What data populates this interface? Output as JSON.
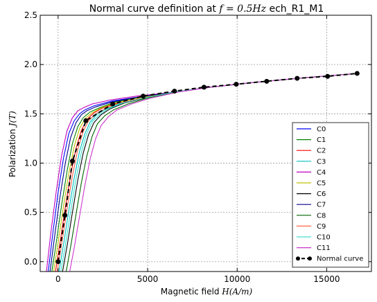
{
  "chart_data": {
    "type": "line",
    "title_prefix": "Normal curve definition at ",
    "title_math": "f = 0.5Hz",
    "title_suffix": " ech_R1_M1",
    "xlabel_text": "Magnetic field ",
    "xlabel_math": "H(A/m)",
    "ylabel_text": "Polarization ",
    "ylabel_math": "J(T)",
    "xlim": [
      -1000,
      17500
    ],
    "ylim": [
      -0.1,
      2.5
    ],
    "x_ticks": [
      0,
      5000,
      10000,
      15000
    ],
    "x_tick_labels": [
      "0",
      "5000",
      "10000",
      "15000"
    ],
    "y_ticks": [
      0.0,
      0.5,
      1.0,
      1.5,
      2.0,
      2.5
    ],
    "y_tick_labels": [
      "0.0",
      "0.5",
      "1.0",
      "1.5",
      "2.0",
      "2.5"
    ],
    "grid": true,
    "legend_position": "lower-right",
    "series": [
      {
        "name": "C0",
        "color": "#0000ff",
        "x": [
          -550,
          -300,
          0,
          300,
          600,
          900,
          1200,
          1500,
          2000,
          3000,
          4500,
          6500,
          8500,
          11000,
          14000,
          16700
        ],
        "y": [
          -0.1,
          0.28,
          0.7,
          1.05,
          1.3,
          1.43,
          1.5,
          1.54,
          1.58,
          1.63,
          1.67,
          1.72,
          1.77,
          1.82,
          1.87,
          1.91
        ]
      },
      {
        "name": "C1",
        "color": "#008000",
        "x": [
          -350,
          -100,
          200,
          500,
          800,
          1100,
          1400,
          1800,
          2300,
          3200,
          4600,
          6500,
          8500,
          11000,
          14000,
          16700
        ],
        "y": [
          -0.1,
          0.2,
          0.58,
          0.92,
          1.2,
          1.37,
          1.46,
          1.52,
          1.56,
          1.62,
          1.67,
          1.72,
          1.77,
          1.82,
          1.87,
          1.91
        ]
      },
      {
        "name": "C2",
        "color": "#ff0000",
        "x": [
          -150,
          100,
          400,
          700,
          1000,
          1300,
          1600,
          2000,
          2500,
          3300,
          4700,
          6500,
          8500,
          11000,
          14000,
          16700
        ],
        "y": [
          -0.1,
          0.18,
          0.55,
          0.88,
          1.15,
          1.33,
          1.44,
          1.51,
          1.56,
          1.61,
          1.66,
          1.72,
          1.77,
          1.82,
          1.87,
          1.91
        ]
      },
      {
        "name": "C3",
        "color": "#00bfbf",
        "x": [
          50,
          300,
          600,
          900,
          1200,
          1500,
          1800,
          2200,
          2700,
          3500,
          4800,
          6500,
          8500,
          11000,
          14000,
          16700
        ],
        "y": [
          -0.1,
          0.17,
          0.52,
          0.85,
          1.12,
          1.3,
          1.42,
          1.5,
          1.55,
          1.61,
          1.66,
          1.72,
          1.77,
          1.82,
          1.87,
          1.91
        ]
      },
      {
        "name": "C4",
        "color": "#bf00bf",
        "x": [
          -650,
          -400,
          -100,
          200,
          500,
          800,
          1100,
          1400,
          1900,
          2900,
          4400,
          6500,
          8500,
          11000,
          14000,
          16700
        ],
        "y": [
          -0.1,
          0.3,
          0.72,
          1.08,
          1.33,
          1.46,
          1.53,
          1.56,
          1.6,
          1.64,
          1.68,
          1.72,
          1.77,
          1.82,
          1.87,
          1.91
        ]
      },
      {
        "name": "C5",
        "color": "#bfbf00",
        "x": [
          -250,
          0,
          300,
          600,
          900,
          1200,
          1500,
          1900,
          2400,
          3200,
          4600,
          6500,
          8500,
          11000,
          14000,
          16700
        ],
        "y": [
          -0.1,
          0.19,
          0.56,
          0.9,
          1.17,
          1.35,
          1.45,
          1.51,
          1.56,
          1.61,
          1.66,
          1.72,
          1.77,
          1.82,
          1.87,
          1.91
        ]
      },
      {
        "name": "C6",
        "color": "#000000",
        "x": [
          250,
          500,
          800,
          1100,
          1400,
          1700,
          2000,
          2400,
          2900,
          3700,
          4900,
          6500,
          8500,
          11000,
          14000,
          16700
        ],
        "y": [
          -0.1,
          0.16,
          0.5,
          0.83,
          1.1,
          1.29,
          1.41,
          1.49,
          1.55,
          1.61,
          1.66,
          1.72,
          1.77,
          1.82,
          1.87,
          1.91
        ]
      },
      {
        "name": "C7",
        "color": "#00008b",
        "x": [
          -450,
          -200,
          100,
          400,
          700,
          1000,
          1300,
          1600,
          2100,
          3000,
          4500,
          6500,
          8500,
          11000,
          14000,
          16700
        ],
        "y": [
          -0.1,
          0.25,
          0.65,
          1.0,
          1.26,
          1.41,
          1.49,
          1.53,
          1.57,
          1.62,
          1.67,
          1.72,
          1.77,
          1.82,
          1.87,
          1.91
        ]
      },
      {
        "name": "C8",
        "color": "#006400",
        "x": [
          450,
          700,
          1000,
          1300,
          1600,
          1900,
          2200,
          2600,
          3100,
          3900,
          5000,
          6600,
          8500,
          11000,
          14000,
          16700
        ],
        "y": [
          -0.1,
          0.15,
          0.48,
          0.8,
          1.07,
          1.27,
          1.4,
          1.48,
          1.54,
          1.6,
          1.66,
          1.72,
          1.77,
          1.82,
          1.87,
          1.91
        ]
      },
      {
        "name": "C9",
        "color": "#ff6347",
        "x": [
          -50,
          200,
          500,
          800,
          1100,
          1400,
          1700,
          2100,
          2600,
          3400,
          4700,
          6500,
          8500,
          11000,
          14000,
          16700
        ],
        "y": [
          -0.1,
          0.18,
          0.54,
          0.87,
          1.14,
          1.32,
          1.43,
          1.5,
          1.55,
          1.61,
          1.66,
          1.72,
          1.77,
          1.82,
          1.87,
          1.91
        ]
      },
      {
        "name": "C10",
        "color": "#40e0d0",
        "x": [
          150,
          400,
          700,
          1000,
          1300,
          1600,
          1900,
          2300,
          2800,
          3600,
          4800,
          6500,
          8500,
          11000,
          14000,
          16700
        ],
        "y": [
          -0.1,
          0.16,
          0.51,
          0.84,
          1.11,
          1.3,
          1.42,
          1.49,
          1.55,
          1.61,
          1.66,
          1.72,
          1.77,
          1.82,
          1.87,
          1.91
        ]
      },
      {
        "name": "C11",
        "color": "#cc33cc",
        "x": [
          650,
          900,
          1200,
          1500,
          1800,
          2100,
          2400,
          2800,
          3300,
          4100,
          5200,
          6700,
          8500,
          11000,
          14000,
          16700
        ],
        "y": [
          -0.1,
          0.14,
          0.46,
          0.78,
          1.05,
          1.25,
          1.38,
          1.47,
          1.54,
          1.6,
          1.66,
          1.72,
          1.77,
          1.82,
          1.87,
          1.91
        ]
      }
    ],
    "normal_curve": {
      "name": "Normal curve",
      "color": "#000000",
      "x": [
        0,
        380,
        800,
        1550,
        3050,
        4750,
        6500,
        8150,
        9950,
        11650,
        13350,
        15050,
        16700
      ],
      "y": [
        0.0,
        0.47,
        1.02,
        1.43,
        1.6,
        1.68,
        1.73,
        1.77,
        1.8,
        1.83,
        1.86,
        1.88,
        1.91
      ]
    }
  }
}
